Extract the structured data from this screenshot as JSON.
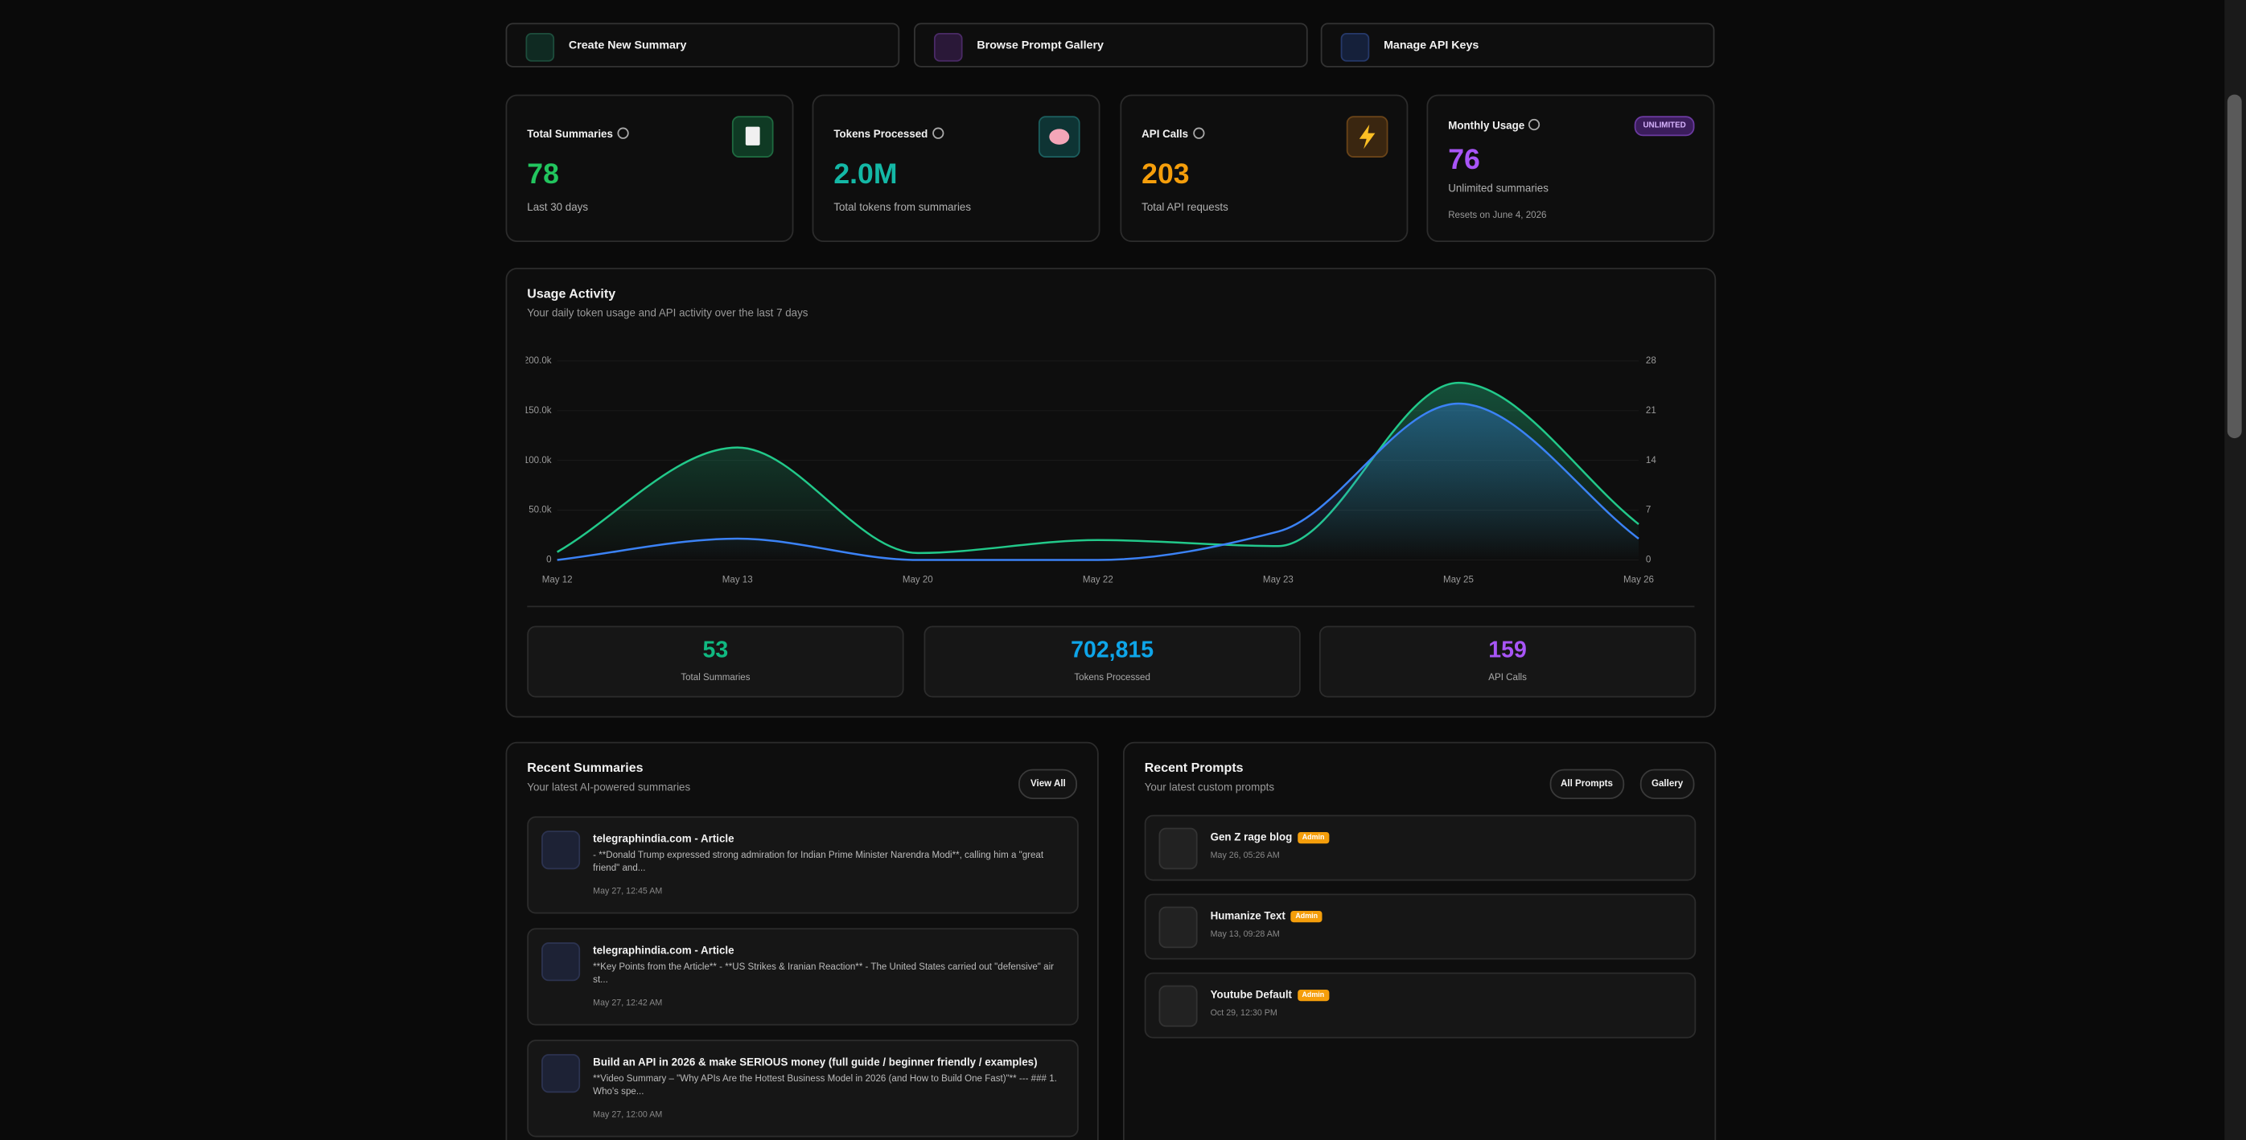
{
  "actions": [
    "Create New Summary",
    "Browse Prompt Gallery",
    "Manage API Keys"
  ],
  "stats": [
    {
      "title": "Total Summaries",
      "value": "78",
      "caption": "Last 30 days"
    },
    {
      "title": "Tokens Processed",
      "value": "2.0M",
      "caption": "Total tokens from summaries"
    },
    {
      "title": "API Calls",
      "value": "203",
      "caption": "Total API requests"
    },
    {
      "title": "Monthly Usage",
      "badge": "UNLIMITED",
      "value": "76",
      "caption": "Unlimited summaries",
      "note": "Resets on June 4, 2026"
    }
  ],
  "usage": {
    "title": "Usage Activity",
    "subtitle": "Your daily token usage and API activity over the last 7 days",
    "chart": {
      "type": "line",
      "categories": [
        "May 12",
        "May 13",
        "May 20",
        "May 22",
        "May 23",
        "May 25",
        "May 26"
      ],
      "series": [
        {
          "color": "#22c98a",
          "values": [
            8000,
            113000,
            7000,
            20000,
            14000,
            178000,
            36000
          ]
        },
        {
          "color": "#3b82f6",
          "axis": "y2",
          "values": [
            0,
            3,
            0,
            0,
            4,
            22,
            3
          ]
        }
      ],
      "ylim": [
        0,
        200000
      ],
      "yticks": [
        0,
        {
          "value": 50000,
          "label": "50.0k"
        },
        {
          "value": 100000,
          "label": "100.0k"
        },
        {
          "value": 150000,
          "label": "150.0k"
        },
        {
          "value": 200000,
          "label": "200.0k"
        }
      ],
      "y2lim": [
        0,
        28
      ],
      "y2ticks": [
        0,
        7,
        14,
        21,
        28
      ],
      "grid": true
    },
    "totals": [
      {
        "value": "53",
        "label": "Total Summaries"
      },
      {
        "value": "702,815",
        "label": "Tokens Processed"
      },
      {
        "value": "159",
        "label": "API Calls"
      }
    ]
  },
  "recent_summaries": {
    "title": "Recent Summaries",
    "subtitle": "Your latest AI-powered summaries",
    "button": "View All",
    "items": [
      {
        "title": "telegraphindia.com - Article",
        "excerpt": "- **Donald Trump expressed strong admiration for Indian Prime Minister Narendra Modi**, calling him a \"great friend\" and...",
        "date": "May 27, 12:45 AM"
      },
      {
        "title": "telegraphindia.com - Article",
        "excerpt": "**Key Points from the Article** - **US Strikes & Iranian Reaction** - The United States carried out \"defensive\" air st...",
        "date": "May 27, 12:42 AM"
      },
      {
        "title": "Build an API in 2026 & make SERIOUS money (full guide / beginner friendly / examples)",
        "excerpt": "**Video Summary – \"Why APIs Are the Hottest Business Model in 2026 (and How to Build One Fast)\"** --- ### 1. Who's spe...",
        "date": "May 27, 12:00 AM"
      }
    ]
  },
  "recent_prompts": {
    "title": "Recent Prompts",
    "subtitle": "Your latest custom prompts",
    "buttons": [
      "All Prompts",
      "Gallery"
    ],
    "items": [
      {
        "name": "Gen Z rage blog",
        "badge": "Admin",
        "date": "May 26, 05:26 AM"
      },
      {
        "name": "Humanize Text",
        "badge": "Admin",
        "date": "May 13, 09:28 AM"
      },
      {
        "name": "Youtube Default",
        "badge": "Admin",
        "date": "Oct 29, 12:30 PM"
      }
    ]
  }
}
